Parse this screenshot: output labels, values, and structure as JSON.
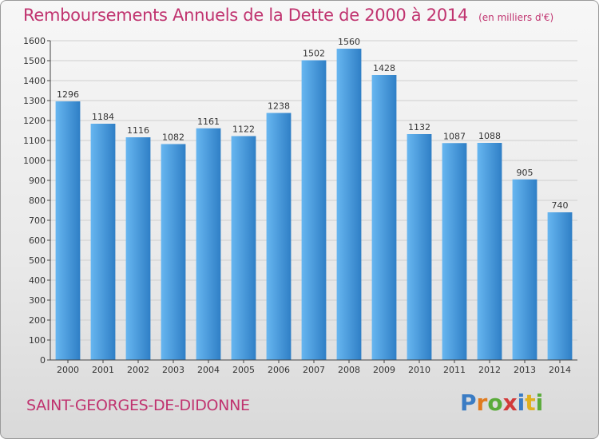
{
  "title": "Remboursements Annuels de la Dette de 2000 à 2014",
  "subtitle": "(en milliers d'€)",
  "location": "SAINT-GEORGES-DE-DIDONNE",
  "logo": {
    "text": "Proxiti",
    "letters": [
      {
        "char": "P",
        "color": "#3a7cc4"
      },
      {
        "char": "r",
        "color": "#e07b1f"
      },
      {
        "char": "o",
        "color": "#5aab3a"
      },
      {
        "char": "x",
        "color": "#d23a3a"
      },
      {
        "char": "i",
        "color": "#3a7cc4"
      },
      {
        "char": "t",
        "color": "#e0b020"
      },
      {
        "char": "i",
        "color": "#5aab3a"
      }
    ]
  },
  "colors": {
    "bar_light": "#67b6f0",
    "bar_dark": "#2f7fc6",
    "title": "#c0336f",
    "grid": "#cfcfcf"
  },
  "chart_data": {
    "type": "bar",
    "title": "Remboursements Annuels de la Dette de 2000 à 2014",
    "subtitle": "(en milliers d'€)",
    "xlabel": "",
    "ylabel": "",
    "categories": [
      "2000",
      "2001",
      "2002",
      "2003",
      "2004",
      "2005",
      "2006",
      "2007",
      "2008",
      "2009",
      "2010",
      "2011",
      "2012",
      "2013",
      "2014"
    ],
    "values": [
      1296,
      1184,
      1116,
      1082,
      1161,
      1122,
      1238,
      1502,
      1560,
      1428,
      1132,
      1087,
      1088,
      905,
      740
    ],
    "ylim": [
      0,
      1600
    ],
    "yticks": [
      0,
      100,
      200,
      300,
      400,
      500,
      600,
      700,
      800,
      900,
      1000,
      1100,
      1200,
      1300,
      1400,
      1500,
      1600
    ],
    "grid": true,
    "data_labels": true
  }
}
